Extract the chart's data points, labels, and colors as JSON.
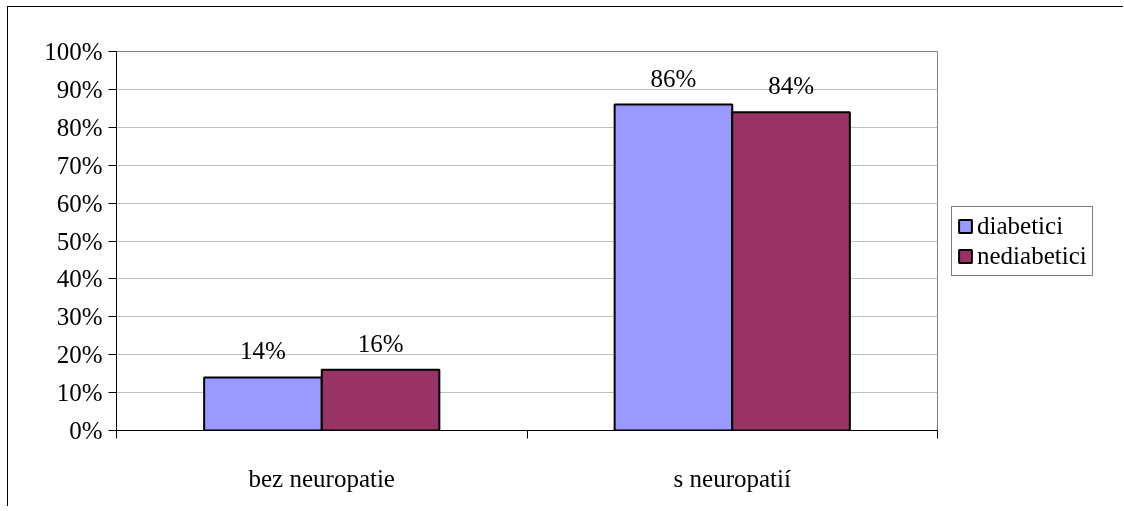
{
  "chart_data": {
    "type": "bar",
    "categories": [
      "bez neuropatie",
      "s neuropatií"
    ],
    "series": [
      {
        "name": "diabetici",
        "color": "#9999ff",
        "values": [
          14,
          86
        ],
        "value_labels": [
          "14%",
          "86%"
        ]
      },
      {
        "name": "nediabetici",
        "color": "#993366",
        "values": [
          16,
          84
        ],
        "value_labels": [
          "16%",
          "84%"
        ]
      }
    ],
    "ylim": [
      0,
      100
    ],
    "yticks": [
      {
        "value": 0,
        "label": "0%"
      },
      {
        "value": 10,
        "label": "10%"
      },
      {
        "value": 20,
        "label": "20%"
      },
      {
        "value": 30,
        "label": "30%"
      },
      {
        "value": 40,
        "label": "40%"
      },
      {
        "value": 50,
        "label": "50%"
      },
      {
        "value": 60,
        "label": "60%"
      },
      {
        "value": 70,
        "label": "70%"
      },
      {
        "value": 80,
        "label": "80%"
      },
      {
        "value": 90,
        "label": "90%"
      },
      {
        "value": 100,
        "label": "100%"
      }
    ],
    "grid": "y",
    "legend": "right"
  }
}
